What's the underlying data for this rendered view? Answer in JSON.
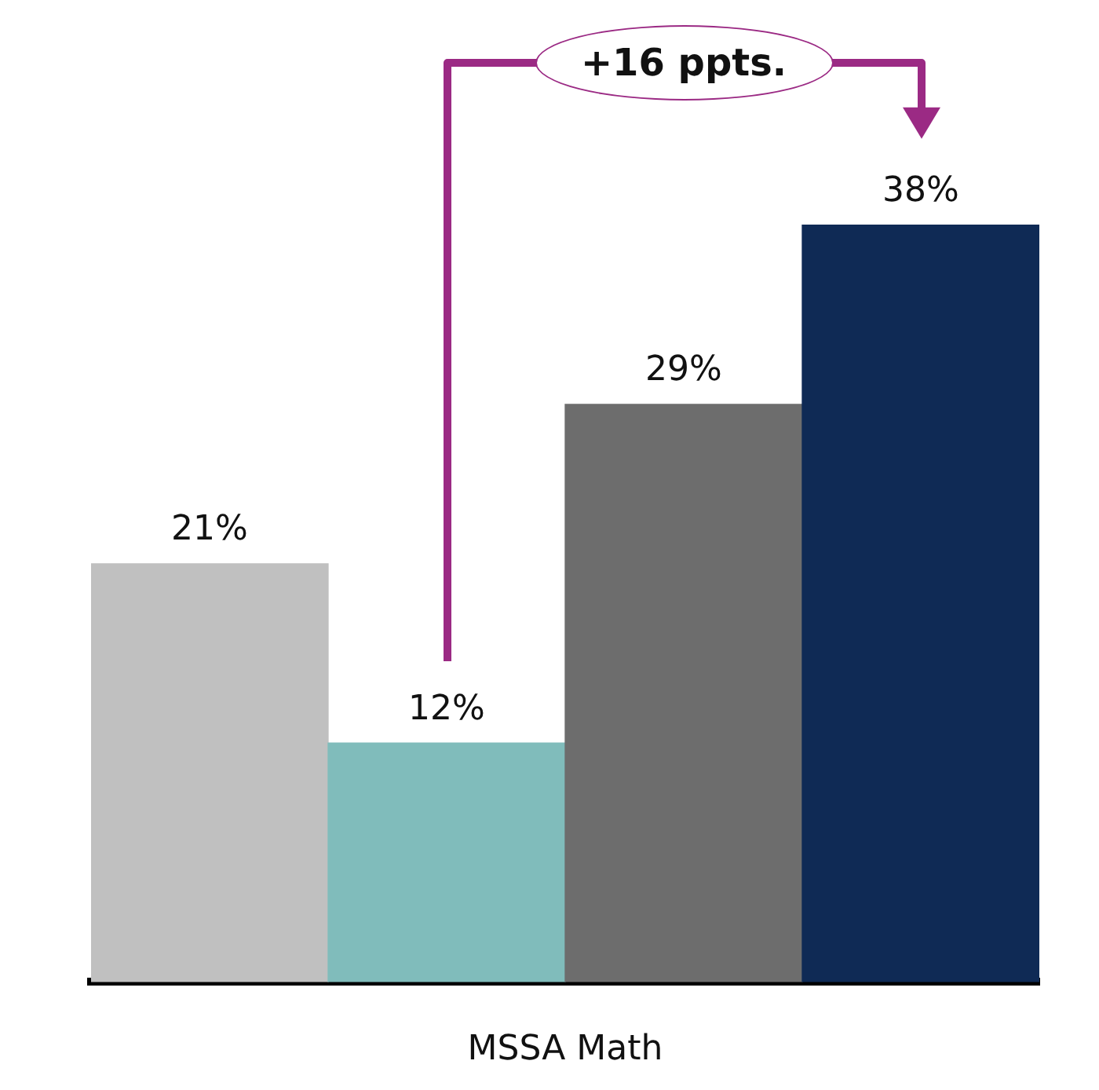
{
  "chart_data": {
    "type": "bar",
    "xlabel": "MSSA Math",
    "categories": [
      null,
      null,
      null,
      null
    ],
    "series": [
      {
        "colors": [
          "#c0c0c0",
          "#80bcbb",
          "#6d6d6d",
          "#0f2a55"
        ],
        "values": [
          21,
          12,
          29,
          38
        ],
        "value_labels": [
          "21%",
          "12%",
          "29%",
          "38%"
        ]
      }
    ],
    "annotations": [
      {
        "text": "+16 ppts."
      }
    ],
    "grid": false,
    "legend": false
  }
}
